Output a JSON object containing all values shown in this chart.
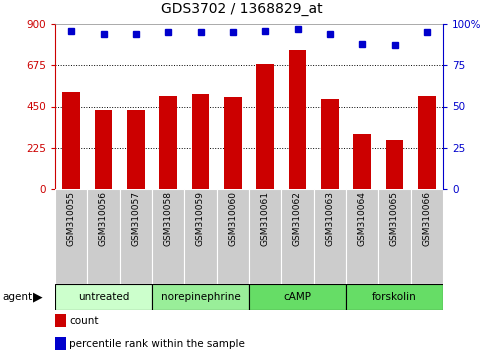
{
  "title": "GDS3702 / 1368829_at",
  "samples": [
    "GSM310055",
    "GSM310056",
    "GSM310057",
    "GSM310058",
    "GSM310059",
    "GSM310060",
    "GSM310061",
    "GSM310062",
    "GSM310063",
    "GSM310064",
    "GSM310065",
    "GSM310066"
  ],
  "counts": [
    530,
    432,
    432,
    510,
    520,
    500,
    680,
    760,
    490,
    300,
    270,
    510
  ],
  "percentiles": [
    96,
    94,
    94,
    95,
    95,
    95,
    96,
    97,
    94,
    88,
    87,
    95
  ],
  "ylim_left": [
    0,
    900
  ],
  "ylim_right": [
    0,
    100
  ],
  "yticks_left": [
    0,
    225,
    450,
    675,
    900
  ],
  "yticks_right": [
    0,
    25,
    50,
    75,
    100
  ],
  "bar_color": "#cc0000",
  "dot_color": "#0000cc",
  "groups": [
    {
      "label": "untreated",
      "start": 0,
      "end": 3,
      "color": "#ccffcc"
    },
    {
      "label": "norepinephrine",
      "start": 3,
      "end": 6,
      "color": "#99ee99"
    },
    {
      "label": "cAMP",
      "start": 6,
      "end": 9,
      "color": "#66dd66"
    },
    {
      "label": "forskolin",
      "start": 9,
      "end": 12,
      "color": "#66dd66"
    }
  ],
  "tick_color_left": "#cc0000",
  "tick_color_right": "#0000cc",
  "grid_color": "#000000",
  "background_color": "#ffffff",
  "sample_bg_color": "#cccccc",
  "agent_label": "agent",
  "legend_count_label": "count",
  "legend_pct_label": "percentile rank within the sample"
}
